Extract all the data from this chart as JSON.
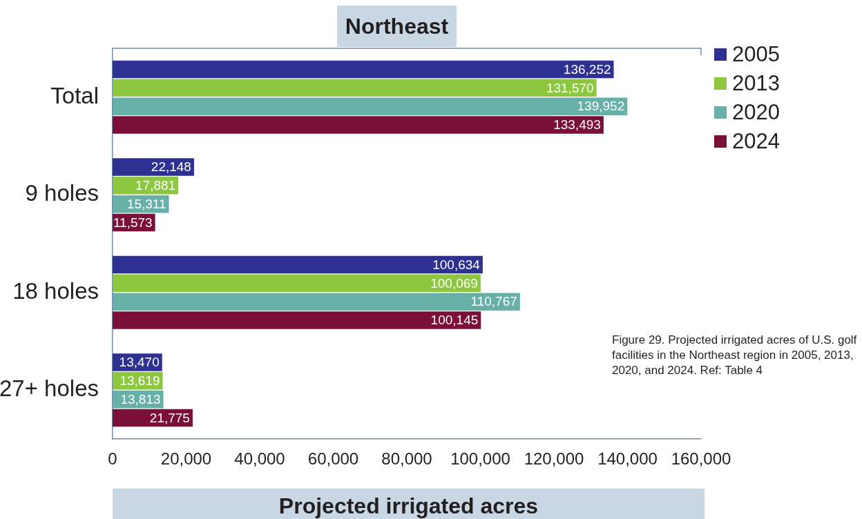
{
  "chart_data": {
    "type": "bar",
    "orientation": "horizontal",
    "title": "Northeast",
    "xlabel": "Projected irrigated acres",
    "categories": [
      "Total",
      "9 holes",
      "18 holes",
      "27+ holes"
    ],
    "series": [
      {
        "name": "2005",
        "color": "#2e3192",
        "values": [
          136252,
          22148,
          100634,
          13470
        ],
        "value_labels": [
          "136,252",
          "22,148",
          "100,634",
          "13,470"
        ]
      },
      {
        "name": "2013",
        "color": "#8dc63f",
        "values": [
          131570,
          17881,
          100069,
          13619
        ],
        "value_labels": [
          "131,570",
          "17,881",
          "100,069",
          "13,619"
        ]
      },
      {
        "name": "2020",
        "color": "#66b0a8",
        "values": [
          139952,
          15311,
          110767,
          13813
        ],
        "value_labels": [
          "139,952",
          "15,311",
          "110,767",
          "13,813"
        ]
      },
      {
        "name": "2024",
        "color": "#7a1038",
        "values": [
          133493,
          11573,
          100145,
          21775
        ],
        "value_labels": [
          "133,493",
          "11,573",
          "100,145",
          "21,775"
        ]
      }
    ],
    "xlim": [
      0,
      160000
    ],
    "xticks": [
      {
        "value": 0,
        "label": "0"
      },
      {
        "value": 20000,
        "label": "20,000"
      },
      {
        "value": 40000,
        "label": "40,000"
      },
      {
        "value": 60000,
        "label": "60,000"
      },
      {
        "value": 80000,
        "label": "80,000"
      },
      {
        "value": 100000,
        "label": "100,000"
      },
      {
        "value": 120000,
        "label": "120,000"
      },
      {
        "value": 140000,
        "label": "140,000"
      },
      {
        "value": 160000,
        "label": "160,000"
      }
    ],
    "grid": false,
    "legend": "top right",
    "annotations": [
      "Figure 29. Projected irrigated acres of U.S. golf facilities in the Northeast region in 2005, 2013, 2020, and 2024. Ref: Table 4"
    ]
  }
}
